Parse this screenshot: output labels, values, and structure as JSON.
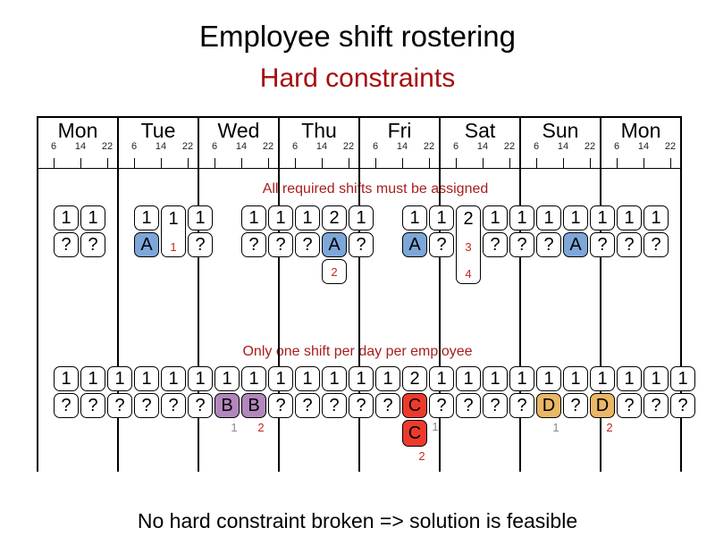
{
  "title": "Employee shift rostering",
  "subtitle": "Hard constraints",
  "footer": "No hard constraint broken => solution is feasible",
  "colors": {
    "heading_red": "#a60d0d",
    "annotation_red": "#a81d1d",
    "violation_red": "#c9231c",
    "ok_gray": "#8a8a8a",
    "employee_A": "#7da7d9",
    "employee_B": "#b287bd",
    "employee_C": "#ee3a2d",
    "employee_D": "#e9b766"
  },
  "timeline": {
    "days": [
      "Mon",
      "Tue",
      "Wed",
      "Thu",
      "Fri",
      "Sat",
      "Sun",
      "Mon"
    ],
    "hours": [
      "6",
      "14",
      "22"
    ]
  },
  "constraint1": {
    "label": "All required shifts must be assigned",
    "cells": [
      {
        "day": 0,
        "shift": 0,
        "required": "1",
        "assigned": "?"
      },
      {
        "day": 0,
        "shift": 1,
        "required": "1",
        "assigned": "?"
      },
      {
        "day": 1,
        "shift": 0,
        "required": "1",
        "assigned": "A"
      },
      {
        "day": 1,
        "shift": 1,
        "required": "1",
        "unassigned_ids": [
          "1"
        ]
      },
      {
        "day": 1,
        "shift": 2,
        "required": "1",
        "assigned": "?"
      },
      {
        "day": 2,
        "shift": 1,
        "required": "1",
        "assigned": "?"
      },
      {
        "day": 2,
        "shift": 2,
        "required": "1",
        "assigned": "?"
      },
      {
        "day": 3,
        "shift": 0,
        "required": "1",
        "assigned": "?"
      },
      {
        "day": 3,
        "shift": 1,
        "required": "2",
        "assigned": "A",
        "unassigned_ids": [
          "2"
        ]
      },
      {
        "day": 3,
        "shift": 2,
        "required": "1",
        "assigned": "?"
      },
      {
        "day": 4,
        "shift": 1,
        "required": "1",
        "assigned": "A"
      },
      {
        "day": 4,
        "shift": 2,
        "required": "1",
        "assigned": "?"
      },
      {
        "day": 5,
        "shift": 0,
        "required": "2",
        "unassigned_ids": [
          "3",
          "4"
        ]
      },
      {
        "day": 5,
        "shift": 1,
        "required": "1",
        "assigned": "?"
      },
      {
        "day": 5,
        "shift": 2,
        "required": "1",
        "assigned": "?"
      },
      {
        "day": 6,
        "shift": 0,
        "required": "1",
        "assigned": "?"
      },
      {
        "day": 6,
        "shift": 1,
        "required": "1",
        "assigned": "A"
      },
      {
        "day": 6,
        "shift": 2,
        "required": "1",
        "assigned": "?"
      },
      {
        "day": 7,
        "shift": 0,
        "required": "1",
        "assigned": "?"
      },
      {
        "day": 7,
        "shift": 1,
        "required": "1",
        "assigned": "?"
      }
    ]
  },
  "constraint2": {
    "label": "Only one shift per day per employee",
    "cells": [
      {
        "day": 0,
        "shift": 0,
        "required": "1",
        "assigned": "?"
      },
      {
        "day": 0,
        "shift": 1,
        "required": "1",
        "assigned": "?"
      },
      {
        "day": 0,
        "shift": 2,
        "required": "1",
        "assigned": "?"
      },
      {
        "day": 1,
        "shift": 0,
        "required": "1",
        "assigned": "?"
      },
      {
        "day": 1,
        "shift": 1,
        "required": "1",
        "assigned": "?"
      },
      {
        "day": 1,
        "shift": 2,
        "required": "1",
        "assigned": "?"
      },
      {
        "day": 2,
        "shift": 0,
        "required": "1",
        "assigned": "B",
        "note": {
          "text": "1",
          "tone": "gray"
        }
      },
      {
        "day": 2,
        "shift": 1,
        "required": "1",
        "assigned": "B",
        "note": {
          "text": "2",
          "tone": "red"
        }
      },
      {
        "day": 2,
        "shift": 2,
        "required": "1",
        "assigned": "?"
      },
      {
        "day": 3,
        "shift": 0,
        "required": "1",
        "assigned": "?"
      },
      {
        "day": 3,
        "shift": 1,
        "required": "1",
        "assigned": "?"
      },
      {
        "day": 3,
        "shift": 2,
        "required": "1",
        "assigned": "?"
      },
      {
        "day": 4,
        "shift": 0,
        "required": "1",
        "assigned": "?"
      },
      {
        "day": 4,
        "shift": 1,
        "required": "2",
        "assigned": "C",
        "stacked": {
          "assigned": "C",
          "side_note": {
            "text": "1",
            "tone": "gray"
          },
          "note": {
            "text": "2",
            "tone": "red"
          }
        }
      },
      {
        "day": 4,
        "shift": 2,
        "required": "1",
        "assigned": "?"
      },
      {
        "day": 5,
        "shift": 0,
        "required": "1",
        "assigned": "?"
      },
      {
        "day": 5,
        "shift": 1,
        "required": "1",
        "assigned": "?"
      },
      {
        "day": 5,
        "shift": 2,
        "required": "1",
        "assigned": "?"
      },
      {
        "day": 6,
        "shift": 0,
        "required": "1",
        "assigned": "D",
        "note": {
          "text": "1",
          "tone": "gray"
        }
      },
      {
        "day": 6,
        "shift": 1,
        "required": "1",
        "assigned": "?"
      },
      {
        "day": 6,
        "shift": 2,
        "required": "1",
        "assigned": "D",
        "note": {
          "text": "2",
          "tone": "red"
        }
      },
      {
        "day": 7,
        "shift": 0,
        "required": "1",
        "assigned": "?"
      },
      {
        "day": 7,
        "shift": 1,
        "required": "1",
        "assigned": "?"
      },
      {
        "day": 7,
        "shift": 2,
        "required": "1",
        "assigned": "?"
      }
    ]
  }
}
